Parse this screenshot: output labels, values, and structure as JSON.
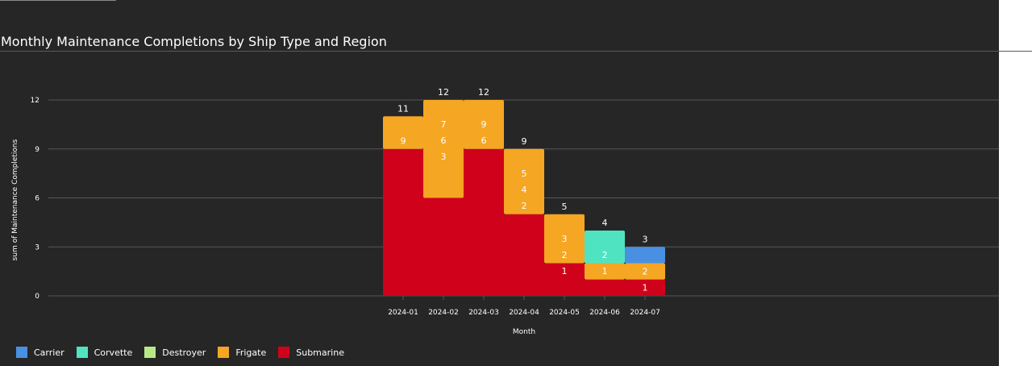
{
  "chart_data": {
    "type": "bar",
    "stacked": true,
    "title": "Monthly Maintenance Completions by Ship Type and Region",
    "xlabel": "Month",
    "ylabel": "sum of Maintenance Completions",
    "ylim": [
      0,
      12
    ],
    "yticks": [
      0,
      3,
      6,
      9,
      12
    ],
    "grid": true,
    "legend_position": "bottom-left",
    "categories": [
      "2024-01",
      "2024-02",
      "2024-03",
      "2024-04",
      "2024-05",
      "2024-06",
      "2024-07"
    ],
    "series": [
      {
        "name": "Carrier",
        "color": "#4a90e2",
        "values": [
          0,
          0,
          0,
          0,
          0,
          0,
          1
        ]
      },
      {
        "name": "Corvette",
        "color": "#50e3c2",
        "values": [
          0,
          0,
          0,
          0,
          0,
          2,
          0
        ]
      },
      {
        "name": "Destroyer",
        "color": "#b8e986",
        "values": [
          0,
          0,
          0,
          0,
          0,
          0,
          0
        ]
      },
      {
        "name": "Frigate",
        "color": "#f5a623",
        "values": [
          2,
          6,
          3,
          4,
          3,
          1,
          1
        ]
      },
      {
        "name": "Submarine",
        "color": "#d0021b",
        "values": [
          9,
          6,
          9,
          5,
          2,
          1,
          1
        ]
      }
    ],
    "segment_labels": [
      {
        "category": "2024-01",
        "labels": [
          "9"
        ]
      },
      {
        "category": "2024-02",
        "labels": [
          "7",
          "6",
          "3"
        ]
      },
      {
        "category": "2024-03",
        "labels": [
          "9",
          "6"
        ]
      },
      {
        "category": "2024-04",
        "labels": [
          "5",
          "4",
          "2"
        ]
      },
      {
        "category": "2024-05",
        "labels": [
          "3",
          "2",
          "1"
        ]
      },
      {
        "category": "2024-06",
        "labels": [
          "2",
          "1"
        ]
      },
      {
        "category": "2024-07",
        "labels": [
          "2",
          "1"
        ]
      }
    ],
    "totals": [
      "11",
      "12",
      "12",
      "9",
      "5",
      "4",
      "3"
    ]
  }
}
